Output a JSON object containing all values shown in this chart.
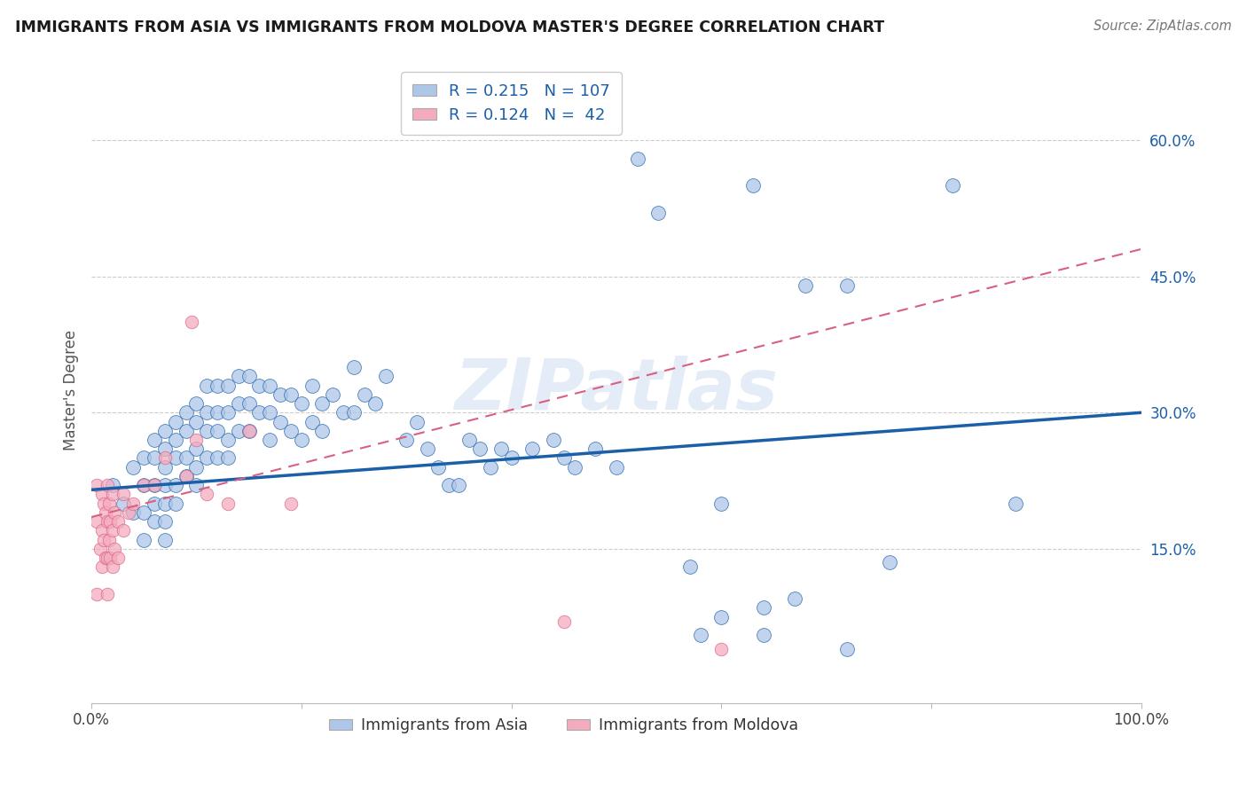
{
  "title": "IMMIGRANTS FROM ASIA VS IMMIGRANTS FROM MOLDOVA MASTER'S DEGREE CORRELATION CHART",
  "source": "Source: ZipAtlas.com",
  "ylabel_label": "Master's Degree",
  "ytick_values": [
    0.15,
    0.3,
    0.45,
    0.6
  ],
  "ytick_labels": [
    "15.0%",
    "30.0%",
    "45.0%",
    "60.0%"
  ],
  "xlim": [
    0.0,
    1.0
  ],
  "ylim": [
    -0.02,
    0.67
  ],
  "legend_blue_R": "0.215",
  "legend_blue_N": "107",
  "legend_pink_R": "0.124",
  "legend_pink_N": " 42",
  "blue_color": "#aec6e8",
  "pink_color": "#f4abbe",
  "blue_line_color": "#1a5fa8",
  "pink_line_color": "#d96080",
  "watermark": "ZIPatlas",
  "blue_line_x0": 0.0,
  "blue_line_y0": 0.215,
  "blue_line_x1": 1.0,
  "blue_line_y1": 0.3,
  "pink_line_x0": 0.0,
  "pink_line_y0": 0.185,
  "pink_line_x1": 1.0,
  "pink_line_y1": 0.48,
  "blue_x": [
    0.02,
    0.03,
    0.04,
    0.04,
    0.05,
    0.05,
    0.05,
    0.05,
    0.06,
    0.06,
    0.06,
    0.06,
    0.06,
    0.07,
    0.07,
    0.07,
    0.07,
    0.07,
    0.07,
    0.07,
    0.08,
    0.08,
    0.08,
    0.08,
    0.08,
    0.09,
    0.09,
    0.09,
    0.09,
    0.1,
    0.1,
    0.1,
    0.1,
    0.1,
    0.11,
    0.11,
    0.11,
    0.11,
    0.12,
    0.12,
    0.12,
    0.12,
    0.13,
    0.13,
    0.13,
    0.13,
    0.14,
    0.14,
    0.14,
    0.15,
    0.15,
    0.15,
    0.16,
    0.16,
    0.17,
    0.17,
    0.17,
    0.18,
    0.18,
    0.19,
    0.19,
    0.2,
    0.2,
    0.21,
    0.21,
    0.22,
    0.22,
    0.23,
    0.24,
    0.25,
    0.25,
    0.26,
    0.27,
    0.28,
    0.3,
    0.31,
    0.32,
    0.33,
    0.34,
    0.35,
    0.36,
    0.37,
    0.38,
    0.39,
    0.4,
    0.42,
    0.44,
    0.45,
    0.46,
    0.48,
    0.5,
    0.52,
    0.54,
    0.57,
    0.6,
    0.63,
    0.68,
    0.72,
    0.76,
    0.82,
    0.88,
    0.64,
    0.58,
    0.67,
    0.72,
    0.6,
    0.64
  ],
  "blue_y": [
    0.22,
    0.2,
    0.24,
    0.19,
    0.25,
    0.22,
    0.19,
    0.16,
    0.27,
    0.25,
    0.22,
    0.2,
    0.18,
    0.28,
    0.26,
    0.24,
    0.22,
    0.2,
    0.18,
    0.16,
    0.29,
    0.27,
    0.25,
    0.22,
    0.2,
    0.3,
    0.28,
    0.25,
    0.23,
    0.31,
    0.29,
    0.26,
    0.24,
    0.22,
    0.33,
    0.3,
    0.28,
    0.25,
    0.33,
    0.3,
    0.28,
    0.25,
    0.33,
    0.3,
    0.27,
    0.25,
    0.34,
    0.31,
    0.28,
    0.34,
    0.31,
    0.28,
    0.33,
    0.3,
    0.33,
    0.3,
    0.27,
    0.32,
    0.29,
    0.32,
    0.28,
    0.31,
    0.27,
    0.33,
    0.29,
    0.31,
    0.28,
    0.32,
    0.3,
    0.35,
    0.3,
    0.32,
    0.31,
    0.34,
    0.27,
    0.29,
    0.26,
    0.24,
    0.22,
    0.22,
    0.27,
    0.26,
    0.24,
    0.26,
    0.25,
    0.26,
    0.27,
    0.25,
    0.24,
    0.26,
    0.24,
    0.58,
    0.52,
    0.13,
    0.2,
    0.55,
    0.44,
    0.44,
    0.135,
    0.55,
    0.2,
    0.085,
    0.055,
    0.095,
    0.04,
    0.075,
    0.055
  ],
  "pink_x": [
    0.005,
    0.005,
    0.005,
    0.008,
    0.01,
    0.01,
    0.01,
    0.012,
    0.012,
    0.013,
    0.013,
    0.015,
    0.015,
    0.015,
    0.015,
    0.017,
    0.017,
    0.018,
    0.018,
    0.02,
    0.02,
    0.02,
    0.022,
    0.022,
    0.025,
    0.025,
    0.03,
    0.03,
    0.035,
    0.04,
    0.05,
    0.06,
    0.07,
    0.09,
    0.095,
    0.1,
    0.11,
    0.13,
    0.15,
    0.19,
    0.45,
    0.6
  ],
  "pink_y": [
    0.22,
    0.18,
    0.1,
    0.15,
    0.21,
    0.17,
    0.13,
    0.2,
    0.16,
    0.19,
    0.14,
    0.22,
    0.18,
    0.14,
    0.1,
    0.2,
    0.16,
    0.18,
    0.14,
    0.21,
    0.17,
    0.13,
    0.19,
    0.15,
    0.18,
    0.14,
    0.21,
    0.17,
    0.19,
    0.2,
    0.22,
    0.22,
    0.25,
    0.23,
    0.4,
    0.27,
    0.21,
    0.2,
    0.28,
    0.2,
    0.07,
    0.04
  ]
}
